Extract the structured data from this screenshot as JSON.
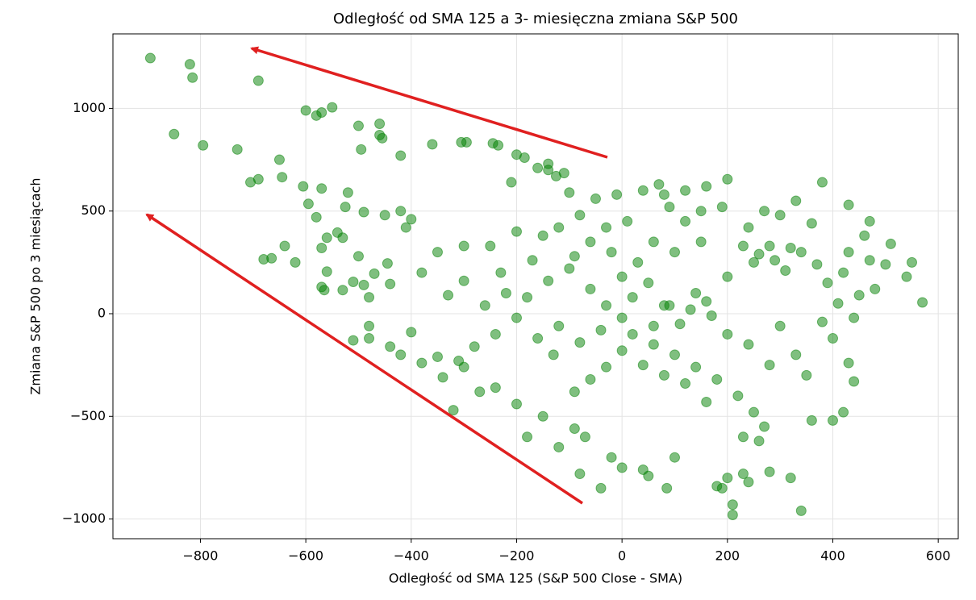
{
  "chart_data": {
    "type": "scatter",
    "title": "Odległość od SMA 125 a 3- miesięczna zmiana S&P 500",
    "xlabel": "Odległość od SMA 125 (S&P 500 Close - SMA)",
    "ylabel": "Zmiana S&P 500 po 3 miesiącach",
    "color": "#008000",
    "opacity": 0.5,
    "grid": true,
    "xlim": [
      -966,
      638
    ],
    "ylim": [
      -1096,
      1363
    ],
    "xticks": [
      {
        "value": -800,
        "label": "−800"
      },
      {
        "value": -600,
        "label": "−600"
      },
      {
        "value": -400,
        "label": "−400"
      },
      {
        "value": -200,
        "label": "−200"
      },
      0,
      200,
      400,
      600
    ],
    "yticks": [
      {
        "value": -1000,
        "label": "−1000"
      },
      {
        "value": -500,
        "label": "−500"
      },
      0,
      500,
      1000
    ],
    "x": [
      -895,
      -820,
      -815,
      -690,
      -850,
      -795,
      -730,
      -690,
      -705,
      -600,
      -580,
      -570,
      -550,
      -500,
      -460,
      -460,
      -455,
      -495,
      -420,
      -360,
      -305,
      -295,
      -245,
      -235,
      -200,
      -185,
      -140,
      -140,
      -160,
      -125,
      -110,
      -100,
      -210,
      -650,
      -645,
      -605,
      -595,
      -570,
      -520,
      -525,
      -580,
      -490,
      -450,
      -420,
      -400,
      -410,
      -540,
      -530,
      -560,
      -570,
      -640,
      -620,
      -680,
      -665,
      -560,
      -570,
      -565,
      -530,
      -510,
      -490,
      -440,
      -470,
      -445,
      -500,
      -480,
      -510,
      -480,
      -480,
      -440,
      -420,
      -400,
      -380,
      -350,
      -340,
      -310,
      -320,
      -300,
      -270,
      -240,
      -200,
      -180,
      -150,
      -120,
      -90,
      -80,
      -70,
      -40,
      -20,
      0,
      40,
      50,
      85,
      100,
      180,
      190,
      200,
      210,
      210,
      230,
      240,
      280,
      320,
      340,
      360,
      400,
      420,
      430,
      440,
      400,
      440,
      480,
      500,
      540,
      570,
      550,
      510,
      470,
      430,
      380,
      330,
      300,
      200,
      160,
      120,
      80,
      70,
      40,
      -10,
      -50,
      -80,
      -120,
      -150,
      -200,
      -250,
      -300,
      -350,
      -380,
      -330,
      -260,
      -220,
      -180,
      -140,
      -100,
      -60,
      -30,
      0,
      20,
      50,
      80,
      110,
      140,
      170,
      200,
      230,
      260,
      290,
      310,
      340,
      370,
      390,
      420,
      450,
      470,
      250,
      280,
      320,
      150,
      120,
      100,
      60,
      30,
      -20,
      -60,
      0,
      -40,
      -80,
      -120,
      -160,
      -200,
      -240,
      -280,
      60,
      100,
      140,
      180,
      220,
      250,
      270,
      260,
      230,
      160,
      120,
      80,
      40,
      0,
      -30,
      -60,
      -90,
      -130,
      20,
      60,
      90,
      130,
      160,
      300,
      330,
      350,
      280,
      240,
      200,
      380,
      410,
      430,
      460,
      360,
      270,
      240,
      190,
      150,
      90,
      10,
      -30,
      -90,
      -170,
      -230,
      -300
    ],
    "values": [
      1245,
      1215,
      1150,
      1135,
      875,
      820,
      800,
      655,
      640,
      990,
      965,
      980,
      1005,
      915,
      925,
      870,
      855,
      800,
      770,
      825,
      835,
      835,
      830,
      820,
      775,
      760,
      730,
      700,
      710,
      670,
      685,
      590,
      640,
      750,
      665,
      620,
      535,
      610,
      590,
      520,
      470,
      495,
      480,
      500,
      460,
      420,
      395,
      370,
      370,
      320,
      330,
      250,
      265,
      270,
      205,
      130,
      115,
      115,
      155,
      140,
      145,
      195,
      245,
      280,
      80,
      -130,
      -60,
      -120,
      -160,
      -200,
      -90,
      -240,
      -210,
      -310,
      -230,
      -470,
      -260,
      -380,
      -360,
      -440,
      -600,
      -500,
      -650,
      -560,
      -780,
      -600,
      -850,
      -700,
      -750,
      -760,
      -790,
      -850,
      -700,
      -840,
      -850,
      -800,
      -980,
      -930,
      -780,
      -820,
      -770,
      -800,
      -960,
      -520,
      -520,
      -480,
      -240,
      -330,
      -120,
      -20,
      120,
      240,
      180,
      55,
      250,
      340,
      450,
      530,
      640,
      550,
      480,
      655,
      620,
      600,
      580,
      630,
      600,
      580,
      560,
      480,
      420,
      380,
      400,
      330,
      330,
      300,
      200,
      90,
      40,
      100,
      80,
      160,
      220,
      120,
      40,
      -20,
      80,
      150,
      40,
      -50,
      100,
      -10,
      180,
      330,
      290,
      260,
      210,
      300,
      240,
      150,
      200,
      90,
      260,
      250,
      330,
      320,
      350,
      450,
      300,
      350,
      250,
      300,
      350,
      180,
      -80,
      -140,
      -60,
      -120,
      -20,
      -100,
      -160,
      -150,
      -200,
      -260,
      -320,
      -400,
      -480,
      -550,
      -620,
      -600,
      -430,
      -340,
      -300,
      -250,
      -180,
      -260,
      -320,
      -380,
      -200,
      -100,
      -60,
      40,
      20,
      60,
      -60,
      -200,
      -300,
      -250,
      -150,
      -100,
      -40,
      50,
      300,
      380,
      440,
      500,
      420,
      520,
      500,
      520,
      450,
      420,
      280,
      260,
      200,
      160
    ]
  }
}
